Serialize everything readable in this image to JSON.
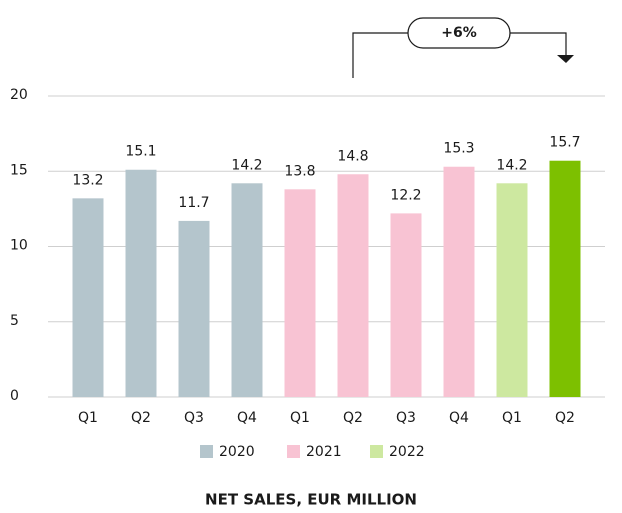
{
  "chart_data": {
    "type": "bar",
    "title": "NET SALES, EUR MILLION",
    "categories": [
      "Q1",
      "Q2",
      "Q3",
      "Q4",
      "Q1",
      "Q2",
      "Q3",
      "Q4",
      "Q1",
      "Q2"
    ],
    "values": [
      13.2,
      15.1,
      11.7,
      14.2,
      13.8,
      14.8,
      12.2,
      15.3,
      14.2,
      15.7
    ],
    "colors": [
      "#b4c5cc",
      "#b4c5cc",
      "#b4c5cc",
      "#b4c5cc",
      "#f8c3d3",
      "#f8c3d3",
      "#f8c3d3",
      "#f8c3d3",
      "#cde8a0",
      "#7dc000"
    ],
    "legend": [
      {
        "name": "2020",
        "color": "#b4c5cc"
      },
      {
        "name": "2021",
        "color": "#f8c3d3"
      },
      {
        "name": "2022",
        "color": "#cde8a0"
      }
    ],
    "annotation": "+6%",
    "ylim": [
      0,
      20
    ],
    "yticks": [
      0,
      5,
      10,
      15,
      20
    ],
    "grid": true
  }
}
